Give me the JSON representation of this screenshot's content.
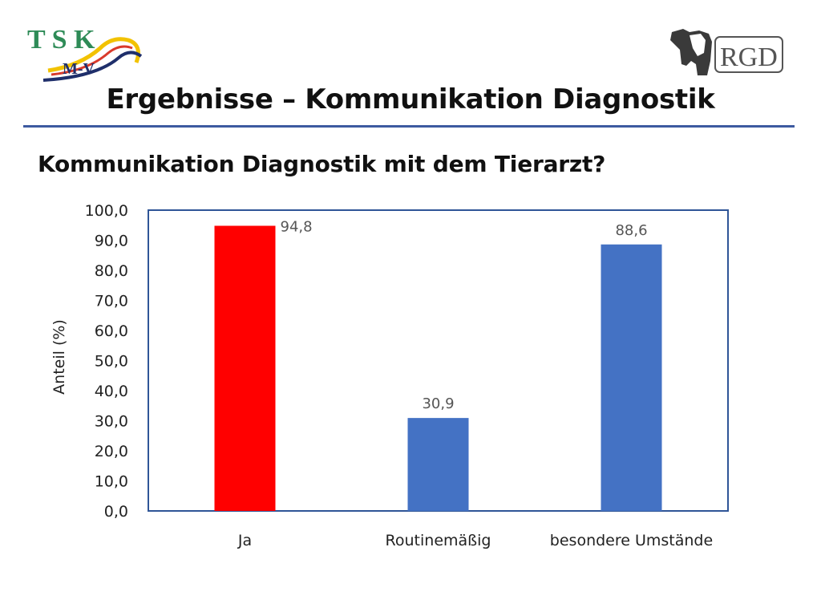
{
  "logos": {
    "left": {
      "name": "TSK M-V logo",
      "line1": "T S K",
      "line2": "M-V"
    },
    "right": {
      "name": "RGD cow logo",
      "text": "RGD"
    }
  },
  "title": "Ergebnisse – Kommunikation Diagnostik",
  "subtitle": "Kommunikation Diagnostik mit dem Tierarzt?",
  "colors": {
    "rule": "#3d5aa0",
    "highlight_bar": "#ff0000",
    "bar": "#4472c4",
    "plot_border": "#2f5597"
  },
  "chart_data": {
    "type": "bar",
    "categories": [
      "Ja",
      "Routinemäßig",
      "besondere Umstände"
    ],
    "values": [
      94.8,
      30.9,
      88.6
    ],
    "value_labels": [
      "94,8",
      "30,9",
      "88,6"
    ],
    "bar_colors": [
      "#ff0000",
      "#4472c4",
      "#4472c4"
    ],
    "title": "",
    "xlabel": "",
    "ylabel": "Anteil (%)",
    "ylim": [
      0,
      100
    ],
    "yticks": [
      0,
      10,
      20,
      30,
      40,
      50,
      60,
      70,
      80,
      90,
      100
    ],
    "ytick_labels": [
      "0,0",
      "10,0",
      "20,0",
      "30,0",
      "40,0",
      "50,0",
      "60,0",
      "70,0",
      "80,0",
      "90,0",
      "100,0"
    ],
    "grid": false,
    "legend": "none"
  }
}
